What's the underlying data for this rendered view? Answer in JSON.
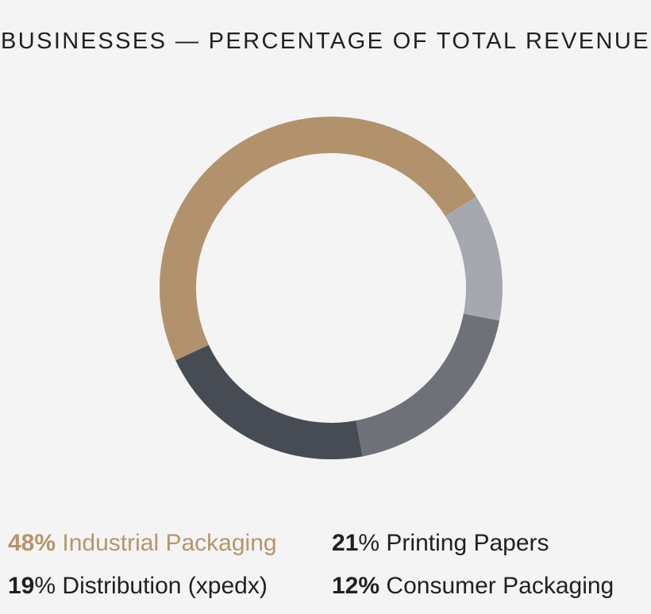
{
  "chart_data": {
    "type": "pie",
    "title": "BUSINESSES — PERCENTAGE OF TOTAL REVENUE",
    "categories": [
      "Industrial Packaging",
      "Printing Papers",
      "Distribution (xpedx)",
      "Consumer Packaging"
    ],
    "values": [
      48,
      21,
      19,
      12
    ],
    "colors": [
      "#b2926c",
      "#474c54",
      "#6e7178",
      "#a5a8ae"
    ],
    "legend_placement": "bottom",
    "legend": [
      {
        "num": "48",
        "pct": "%",
        "label": "Industrial Packaging",
        "bold_pct": true,
        "color": "#b6956c"
      },
      {
        "num": "21",
        "pct": "%",
        "label": "Printing Papers",
        "bold_pct": false,
        "color": "#231f20"
      },
      {
        "num": "19",
        "pct": "%",
        "label": "Distribution (xpedx)",
        "bold_pct": false,
        "color": "#231f20"
      },
      {
        "num": "12",
        "pct": "%",
        "label": "Consumer Packaging",
        "bold_pct": true,
        "color": "#231f20"
      }
    ]
  }
}
